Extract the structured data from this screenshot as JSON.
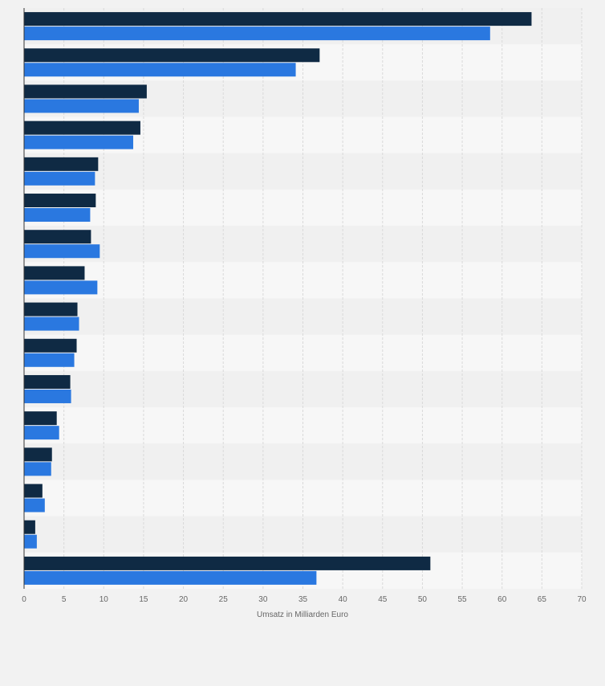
{
  "colors": {
    "series_1": "#0f2a44",
    "series_2": "#2a78e0",
    "grid": "#d9d9d9",
    "axis_text": "#666666",
    "band_light": "#f7f7f7",
    "band_dark": "#f0f0f0",
    "background": "#f2f2f2"
  },
  "chart_data": {
    "type": "bar",
    "orientation": "horizontal",
    "title": "",
    "xlabel": "Umsatz in Milliarden Euro",
    "ylabel": "",
    "xlim": [
      0,
      70
    ],
    "xticks": [
      "0",
      "5",
      "10",
      "15",
      "20",
      "25",
      "30",
      "35",
      "40",
      "45",
      "50",
      "55",
      "60",
      "65",
      "70"
    ],
    "grid": true,
    "legend": "none",
    "categories": [
      "",
      "",
      "",
      "",
      "",
      "",
      "",
      "",
      "",
      "",
      "",
      "",
      "",
      "",
      "",
      ""
    ],
    "series": [
      {
        "name": "",
        "values": [
          63.7,
          37.1,
          15.4,
          14.6,
          9.3,
          9.0,
          8.4,
          7.6,
          6.7,
          6.6,
          5.8,
          4.1,
          3.5,
          2.3,
          1.4,
          51.0
        ]
      },
      {
        "name": "",
        "values": [
          58.5,
          34.1,
          14.4,
          13.7,
          8.9,
          8.3,
          9.5,
          9.2,
          6.9,
          6.3,
          5.9,
          4.4,
          3.4,
          2.6,
          1.6,
          36.7
        ]
      }
    ]
  }
}
